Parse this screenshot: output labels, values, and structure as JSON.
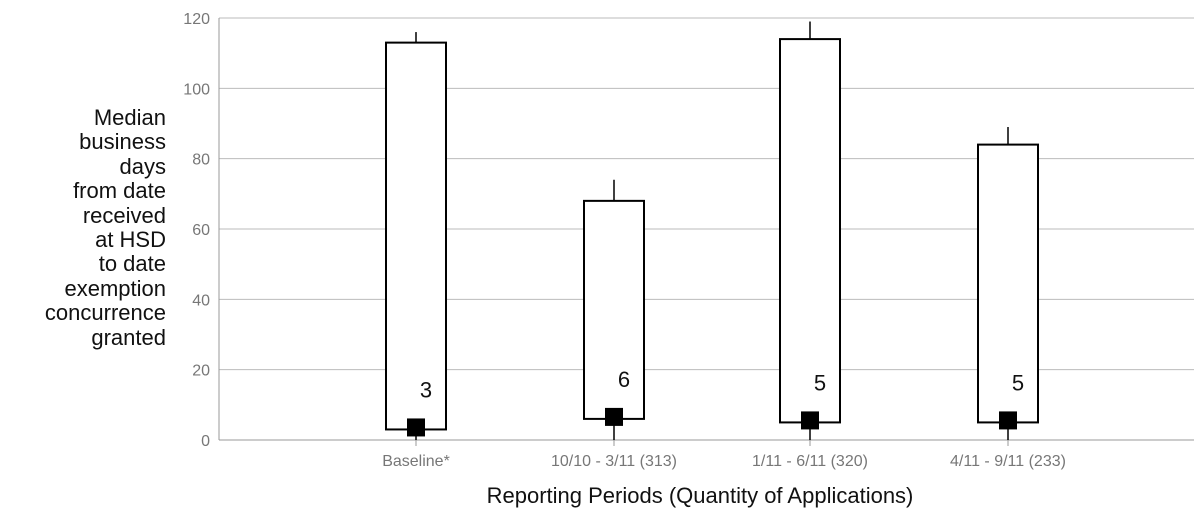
{
  "chart_data": {
    "type": "boxplot",
    "title": "",
    "xlabel": "Reporting Periods (Quantity of Applications)",
    "ylabel_lines": [
      "Median",
      "business",
      "days",
      "from date",
      "received",
      "at HSD",
      "to date",
      "exemption",
      "concurrence",
      "granted"
    ],
    "ylim": [
      0,
      120
    ],
    "yticks": [
      "0",
      "20",
      "40",
      "60",
      "80",
      "100",
      "120"
    ],
    "grid": true,
    "categories": [
      "Baseline*",
      "10/10 - 3/11 (313)",
      "1/11 - 6/11 (320)",
      "4/11 - 9/11 (233)"
    ],
    "median_labels": [
      "3",
      "6",
      "5",
      "5"
    ],
    "series": [
      {
        "category": "Baseline*",
        "whisker_low": 0,
        "box_low": 3,
        "median": 3,
        "box_high": 113,
        "whisker_high": 116
      },
      {
        "category": "10/10 - 3/11 (313)",
        "whisker_low": 0,
        "box_low": 6,
        "median": 6,
        "box_high": 68,
        "whisker_high": 74
      },
      {
        "category": "1/11 - 6/11 (320)",
        "whisker_low": 0,
        "box_low": 5,
        "median": 5,
        "box_high": 114,
        "whisker_high": 119
      },
      {
        "category": "4/11 - 9/11 (233)",
        "whisker_low": 0,
        "box_low": 5,
        "median": 5,
        "box_high": 84,
        "whisker_high": 89
      }
    ],
    "colors": {
      "box_fill": "#ffffff",
      "box_stroke": "#000000",
      "marker": "#000000",
      "grid": "#bbbbbb",
      "axis": "#999999",
      "tick_text": "#777777"
    }
  }
}
